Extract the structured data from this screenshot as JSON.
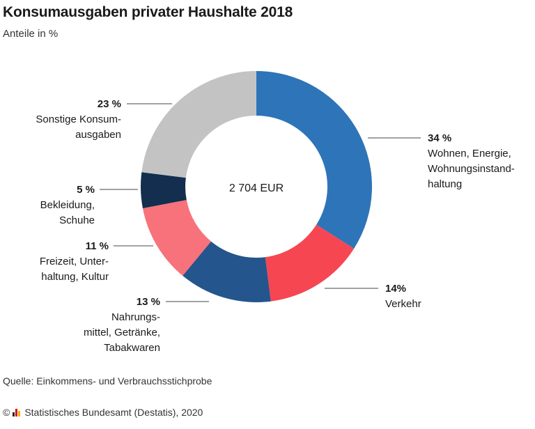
{
  "title": "Konsumausgaben privater Haushalte 2018",
  "subtitle": "Anteile in %",
  "source": "Quelle: Einkommens- und Verbrauchsstichprobe",
  "footer": {
    "copyright": "©",
    "org": "Statistisches Bundesamt (Destatis), 2020"
  },
  "chart_data": {
    "type": "pie",
    "center_label": "2 704 EUR",
    "slices": [
      {
        "pct_label": "34 %",
        "label_lines": [
          "Wohnen, Energie,",
          "Wohnungsinstand-",
          "haltung"
        ],
        "value": 34,
        "color": "#2e74b8"
      },
      {
        "pct_label": "14%",
        "label_lines": [
          "Verkehr"
        ],
        "value": 14,
        "color": "#f54652"
      },
      {
        "pct_label": "13 %",
        "label_lines": [
          "Nahrungs-",
          "mittel, Getränke,",
          "Tabakwaren"
        ],
        "value": 13,
        "color": "#24558c"
      },
      {
        "pct_label": "11 %",
        "label_lines": [
          "Freizeit, Unter-",
          "haltung, Kultur"
        ],
        "value": 11,
        "color": "#f7727a"
      },
      {
        "pct_label": "5 %",
        "label_lines": [
          "Bekleidung,",
          "Schuhe"
        ],
        "value": 5,
        "color": "#132e4f"
      },
      {
        "pct_label": "23 %",
        "label_lines": [
          "Sonstige Konsum-",
          "ausgaben"
        ],
        "value": 23,
        "color": "#c3c3c3"
      }
    ]
  }
}
